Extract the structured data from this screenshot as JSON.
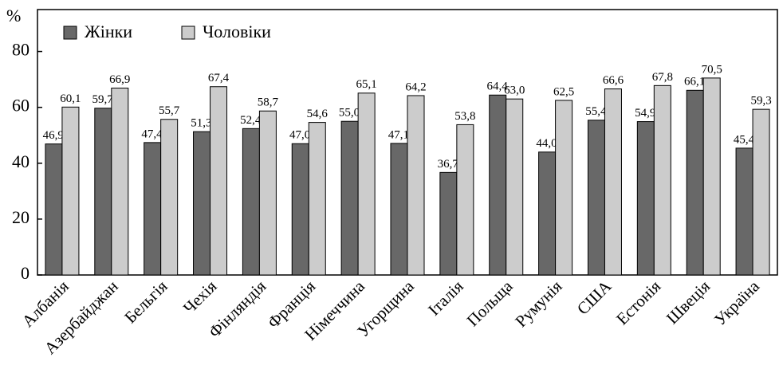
{
  "chart_data": {
    "type": "bar",
    "y_label": "%",
    "categories": [
      "Албанія",
      "Азербайджан",
      "Бельгія",
      "Чехія",
      "Фінляндія",
      "Франція",
      "Німеччина",
      "Угорщина",
      "Італія",
      "Польща",
      "Румунія",
      "США",
      "Естонія",
      "Швеція",
      "Україна"
    ],
    "series": [
      {
        "name": "Жінки",
        "color": "#686868",
        "values": [
          46.9,
          59.7,
          47.4,
          51.3,
          52.4,
          47.0,
          55.0,
          47.1,
          36.7,
          64.4,
          44.0,
          55.4,
          54.9,
          66.1,
          45.4
        ],
        "value_labels": [
          "46,9",
          "59,7",
          "47,4",
          "51,3",
          "52,4",
          "47,0",
          "55,0",
          "47,1",
          "36,7",
          "64,4",
          "44,0",
          "55,4",
          "54,9",
          "66,1",
          "45,4"
        ]
      },
      {
        "name": "Чоловіки",
        "color": "#cccccc",
        "values": [
          60.1,
          66.9,
          55.7,
          67.4,
          58.7,
          54.6,
          65.1,
          64.2,
          53.8,
          63.0,
          62.5,
          66.6,
          67.8,
          70.5,
          59.3
        ],
        "value_labels": [
          "60,1",
          "66,9",
          "55,7",
          "67,4",
          "58,7",
          "54,6",
          "65,1",
          "64,2",
          "53,8",
          "63,0",
          "62,5",
          "66,6",
          "67,8",
          "70,5",
          "59,3"
        ]
      }
    ],
    "ylim": [
      0,
      95
    ],
    "yticks": [
      0,
      20,
      40,
      60,
      80
    ],
    "legend": "top-left"
  }
}
